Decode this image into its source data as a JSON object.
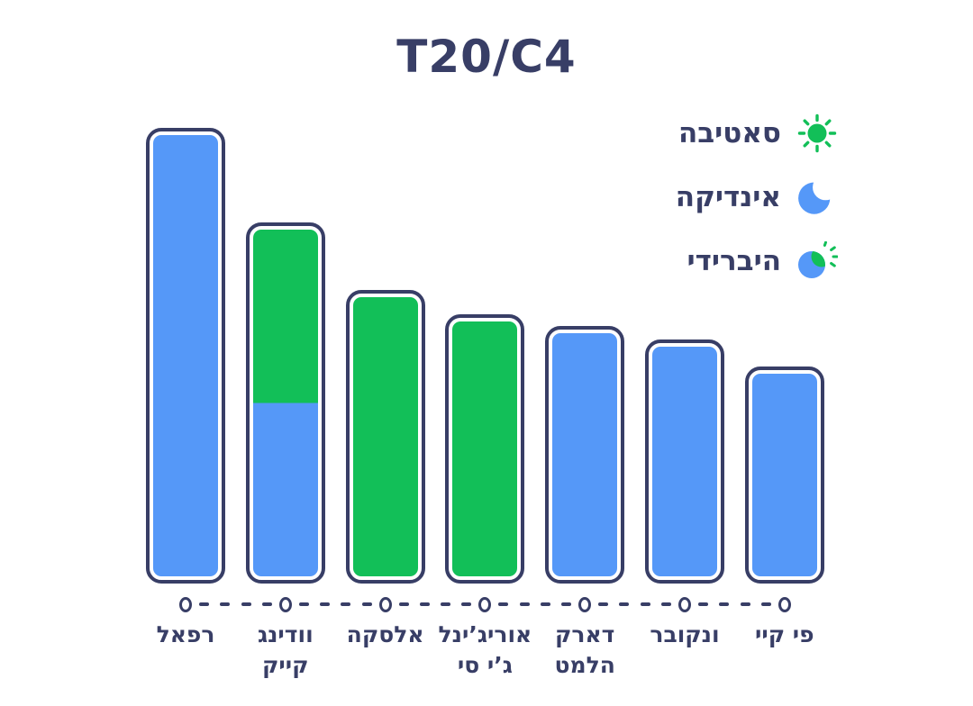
{
  "title": "T20/C4",
  "colors": {
    "navy": "#383e66",
    "blue": "#5598f8",
    "green": "#12bf58",
    "background": "#ffffff"
  },
  "legend": {
    "items": [
      {
        "id": "sativa",
        "label": "סאטיבה",
        "icon": "sun-icon",
        "color": "#12bf58"
      },
      {
        "id": "indica",
        "label": "אינדיקה",
        "icon": "moon-icon",
        "color": "#5598f8"
      },
      {
        "id": "hybrid",
        "label": "היברידי",
        "icon": "sun-moon-icon",
        "color": "#5598f8/#12bf58"
      }
    ]
  },
  "chart_data": {
    "type": "bar",
    "title": "T20/C4",
    "orientation": "vertical",
    "value_axis_shown": false,
    "note": "no numeric axis in image; heights are relative percentages of tallest bar",
    "categories": [
      "רפאל",
      "וודינג קייק",
      "אלסקה",
      "אוריג’ינל ג’י סי",
      "דארק הלמט",
      "ונקובר",
      "פי קיי"
    ],
    "bars": [
      {
        "id": "rafael",
        "label_lines": [
          "רפאל"
        ],
        "relative_height_pct": 100,
        "segments": [
          {
            "type": "indica",
            "fraction": 1
          }
        ]
      },
      {
        "id": "wedding-cake",
        "label_lines": [
          "וודינג",
          "קייק"
        ],
        "relative_height_pct": 79.2,
        "segments": [
          {
            "type": "sativa",
            "fraction": 0.5
          },
          {
            "type": "indica",
            "fraction": 0.5
          }
        ]
      },
      {
        "id": "alaska",
        "label_lines": [
          "אלסקה"
        ],
        "relative_height_pct": 64.4,
        "segments": [
          {
            "type": "sativa",
            "fraction": 1
          }
        ]
      },
      {
        "id": "original-gc",
        "label_lines": [
          "אוריג’ינל",
          "ג’י סי"
        ],
        "relative_height_pct": 59.1,
        "segments": [
          {
            "type": "sativa",
            "fraction": 1
          }
        ]
      },
      {
        "id": "dark-helmet",
        "label_lines": [
          "דארק",
          "הלמט"
        ],
        "relative_height_pct": 56.5,
        "segments": [
          {
            "type": "indica",
            "fraction": 1
          }
        ]
      },
      {
        "id": "vancouver",
        "label_lines": [
          "ונקובר"
        ],
        "relative_height_pct": 53.6,
        "segments": [
          {
            "type": "indica",
            "fraction": 1
          }
        ]
      },
      {
        "id": "p-k",
        "label_lines": [
          "פי קיי"
        ],
        "relative_height_pct": 47.6,
        "segments": [
          {
            "type": "indica",
            "fraction": 1
          }
        ]
      }
    ],
    "segment_type_colors": {
      "sativa": "green",
      "indica": "blue"
    }
  }
}
